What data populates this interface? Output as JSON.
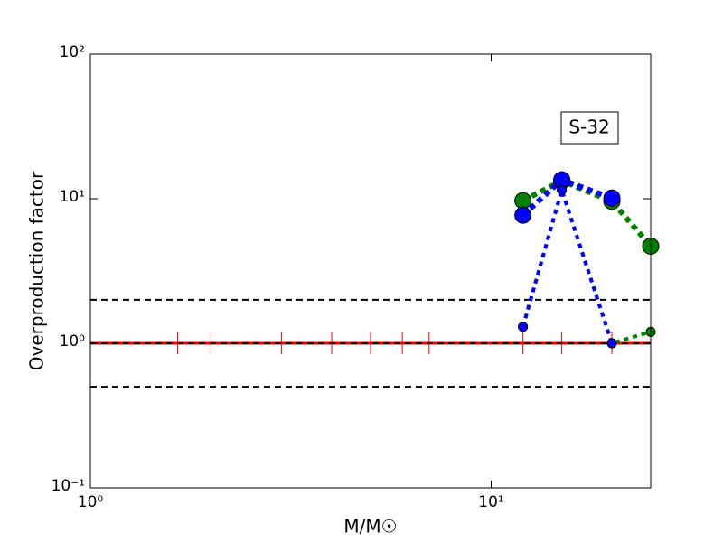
{
  "chart_data": {
    "type": "line",
    "xlabel": "M/M☉",
    "ylabel": "Overproduction factor",
    "annotation": "S-32",
    "log_x": true,
    "log_y": true,
    "xlim": [
      1,
      25
    ],
    "ylim": [
      0.1,
      100
    ],
    "xticks": [
      {
        "value": 1,
        "label": "10⁰"
      },
      {
        "value": 10,
        "label": "10¹"
      }
    ],
    "yticks": [
      {
        "value": 0.1,
        "label": "10⁻¹"
      },
      {
        "value": 1,
        "label": "10⁰"
      },
      {
        "value": 10,
        "label": "10¹"
      },
      {
        "value": 100,
        "label": "10²"
      }
    ],
    "reference_lines": [
      {
        "value": 1,
        "color": "#ff0000",
        "style": "solid"
      },
      {
        "value": 2,
        "color": "#000000",
        "style": "dashed"
      },
      {
        "value": 1,
        "color": "#000000",
        "style": "dashed"
      },
      {
        "value": 0.5,
        "color": "#000000",
        "style": "dashed"
      }
    ],
    "series": [
      {
        "color": "#ff0000",
        "marker": "tick",
        "x": [
          1.65,
          2,
          3,
          4,
          5,
          6,
          7,
          12,
          15,
          20
        ],
        "values": [
          1,
          1,
          1,
          1,
          1,
          1,
          1,
          1,
          1,
          1
        ]
      },
      {
        "color": "#007f00",
        "marker": "large",
        "x": [
          12,
          15,
          20,
          25
        ],
        "values": [
          9.7,
          13.3,
          9.6,
          4.7
        ]
      },
      {
        "color": "#0000ff",
        "marker": "large",
        "x": [
          12,
          15,
          20,
          25
        ],
        "values": [
          7.7,
          13.5,
          10.1,
          null
        ]
      },
      {
        "color": "#007f00",
        "marker": "small",
        "x": [
          12,
          15,
          20,
          25
        ],
        "values": [
          1.3,
          11.5,
          1.0,
          1.2
        ]
      },
      {
        "color": "#0000ff",
        "marker": "small",
        "x": [
          12,
          15,
          20,
          25
        ],
        "values": [
          1.3,
          11.5,
          1.0,
          null
        ]
      }
    ]
  }
}
